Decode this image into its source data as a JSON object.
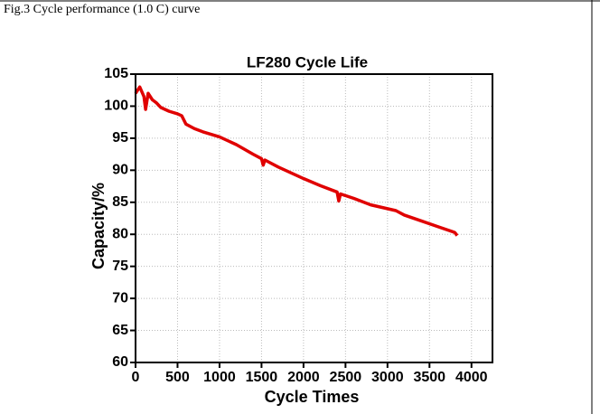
{
  "caption": "Fig.3 Cycle performance (1.0 C) curve",
  "chart_data": {
    "type": "line",
    "title": "LF280 Cycle Life",
    "x_label": "Cycle Times",
    "y_label": "Capacity/%",
    "x": [
      0,
      50,
      100,
      120,
      150,
      200,
      250,
      300,
      400,
      500,
      550,
      600,
      700,
      800,
      1000,
      1200,
      1400,
      1500,
      1520,
      1540,
      1700,
      1900,
      2000,
      2200,
      2400,
      2420,
      2440,
      2600,
      2800,
      3000,
      3100,
      3200,
      3400,
      3600,
      3800,
      3830
    ],
    "values": [
      102,
      103,
      101.5,
      99.5,
      102,
      101,
      100.5,
      99.8,
      99.2,
      98.8,
      98.5,
      97.2,
      96.5,
      96,
      95.2,
      94,
      92.5,
      91.8,
      90.8,
      91.6,
      90.5,
      89.3,
      88.7,
      87.6,
      86.6,
      85.2,
      86.3,
      85.6,
      84.6,
      84,
      83.7,
      83,
      82.1,
      81.2,
      80.3,
      79.8
    ],
    "color": "#e00000",
    "xlim": [
      0,
      4250
    ],
    "ylim": [
      60,
      105
    ],
    "xticks": [
      0,
      500,
      1000,
      1500,
      2000,
      2500,
      3000,
      3500,
      4000
    ],
    "yticks": [
      60,
      65,
      70,
      75,
      80,
      85,
      90,
      95,
      100,
      105
    ],
    "grid": true
  }
}
